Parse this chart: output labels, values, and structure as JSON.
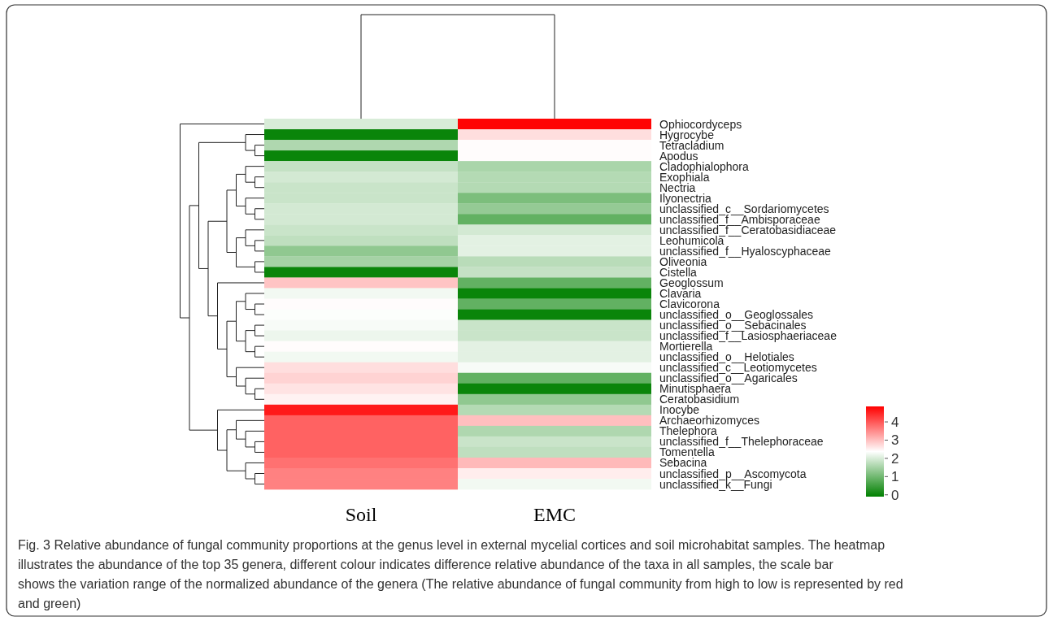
{
  "chart_data": {
    "type": "heatmap",
    "categories": [
      "Soil",
      "EMC"
    ],
    "y_categories": [
      "Ophiocordyceps",
      "Hygrocybe",
      "Tetracladium",
      "Apodus",
      "Cladophialophora",
      "Exophiala",
      "Nectria",
      "Ilyonectria",
      "unclassified_c__Sordariomycetes",
      "unclassified_f__Ambisporaceae",
      "unclassified_f__Ceratobasidiaceae",
      "Leohumicola",
      "unclassified_f__Hyaloscyphaceae",
      "Oliveonia",
      "Cistella",
      "Geoglossum",
      "Clavaria",
      "Clavicorona",
      "unclassified_o__Geoglossales",
      "unclassified_o__Sebacinales",
      "unclassified_f__Lasiosphaeriaceae",
      "Mortierella",
      "unclassified_o__Helotiales",
      "unclassified_c__Leotiomycetes",
      "unclassified_o__Agaricales",
      "Minutisphaera",
      "Ceratobasidium",
      "Inocybe",
      "Archaeorhizomyces",
      "Thelephora",
      "unclassified_f__Thelephoraceae",
      "Tomentella",
      "Sebacina",
      "unclassified_p__Ascomycota",
      "unclassified_k__Fungi"
    ],
    "cells": [
      [
        2.0,
        4.8
      ],
      [
        0,
        2.7
      ],
      [
        1.6,
        2.4
      ],
      [
        0,
        2.4
      ],
      [
        1.8,
        1.55
      ],
      [
        1.95,
        1.65
      ],
      [
        1.85,
        1.65
      ],
      [
        1.85,
        1.1
      ],
      [
        1.95,
        1.35
      ],
      [
        1.95,
        0.85
      ],
      [
        1.85,
        1.95
      ],
      [
        1.75,
        2.1
      ],
      [
        1.3,
        2.1
      ],
      [
        1.5,
        1.7
      ],
      [
        0,
        1.8
      ],
      [
        2.95,
        0.85
      ],
      [
        2.25,
        0
      ],
      [
        2.4,
        0.85
      ],
      [
        2.35,
        0
      ],
      [
        2.3,
        1.85
      ],
      [
        2.2,
        1.85
      ],
      [
        2.4,
        2.1
      ],
      [
        2.25,
        2.1
      ],
      [
        2.7,
        2.3
      ],
      [
        2.8,
        0.85
      ],
      [
        2.65,
        0
      ],
      [
        2.5,
        1.3
      ],
      [
        4.6,
        1.65
      ],
      [
        3.9,
        3.0
      ],
      [
        3.9,
        1.6
      ],
      [
        3.9,
        1.85
      ],
      [
        3.9,
        1.75
      ],
      [
        3.75,
        3.05
      ],
      [
        3.6,
        2.55
      ],
      [
        3.6,
        2.25
      ]
    ],
    "clim": [
      -0.1,
      4.85
    ],
    "cticks": [
      0,
      1,
      2,
      3,
      4
    ],
    "annotations": [
      "Fig. 3 Relative abundance of fungal community proportions at the genus level in external mycelial cortices and soil microhabitat samples. The heatmap illustrates the abundance of the top 35 genera, different colour indicates difference relative abundance of the taxa in all samples, the scale bar shows the variation range of the normalized abundance of the genera (The relative abundance of fungal community from high to low is represented by red and green)"
    ]
  }
}
